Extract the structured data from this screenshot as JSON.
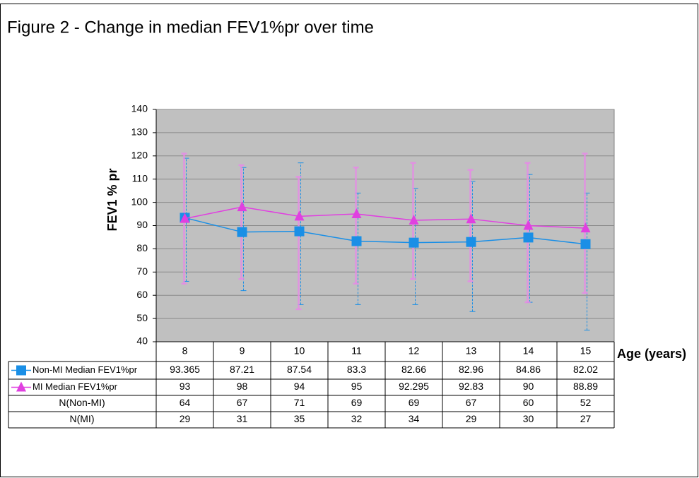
{
  "chart_data": {
    "type": "line",
    "title": "Figure 2 - Change in median FEV1%pr over time",
    "y_label": "FEV1 % pr",
    "x_label": "Age (years)",
    "categories": [
      "8",
      "9",
      "10",
      "11",
      "12",
      "13",
      "14",
      "15"
    ],
    "ylim": [
      40,
      140
    ],
    "yticks": [
      40,
      50,
      60,
      70,
      80,
      90,
      100,
      110,
      120,
      130,
      140
    ],
    "grid": true,
    "series": [
      {
        "name": "Non-MI Median FEV1%pr",
        "color": "#1a8fe6",
        "marker": "square",
        "values": [
          93.365,
          87.21,
          87.54,
          83.3,
          82.66,
          82.96,
          84.86,
          82.02
        ],
        "error_low": [
          66,
          62,
          56,
          56,
          56,
          53,
          57,
          45
        ],
        "error_high": [
          119,
          115,
          117,
          104,
          106,
          109,
          112,
          104
        ]
      },
      {
        "name": "MI Median FEV1%pr",
        "color": "#e040e0",
        "marker": "triangle",
        "values": [
          93,
          98,
          94,
          95,
          92.295,
          92.83,
          90,
          88.89
        ],
        "error_low": [
          65,
          67,
          54,
          65,
          67,
          66,
          57,
          61
        ],
        "error_high": [
          121,
          116,
          111,
          115,
          117,
          114,
          117,
          121
        ]
      }
    ],
    "table_rows": [
      {
        "name": "N(Non-MI)",
        "values": [
          64,
          67,
          71,
          69,
          69,
          67,
          60,
          52
        ]
      },
      {
        "name": "N(MI)",
        "values": [
          29,
          31,
          35,
          32,
          34,
          29,
          30,
          27
        ]
      }
    ]
  }
}
